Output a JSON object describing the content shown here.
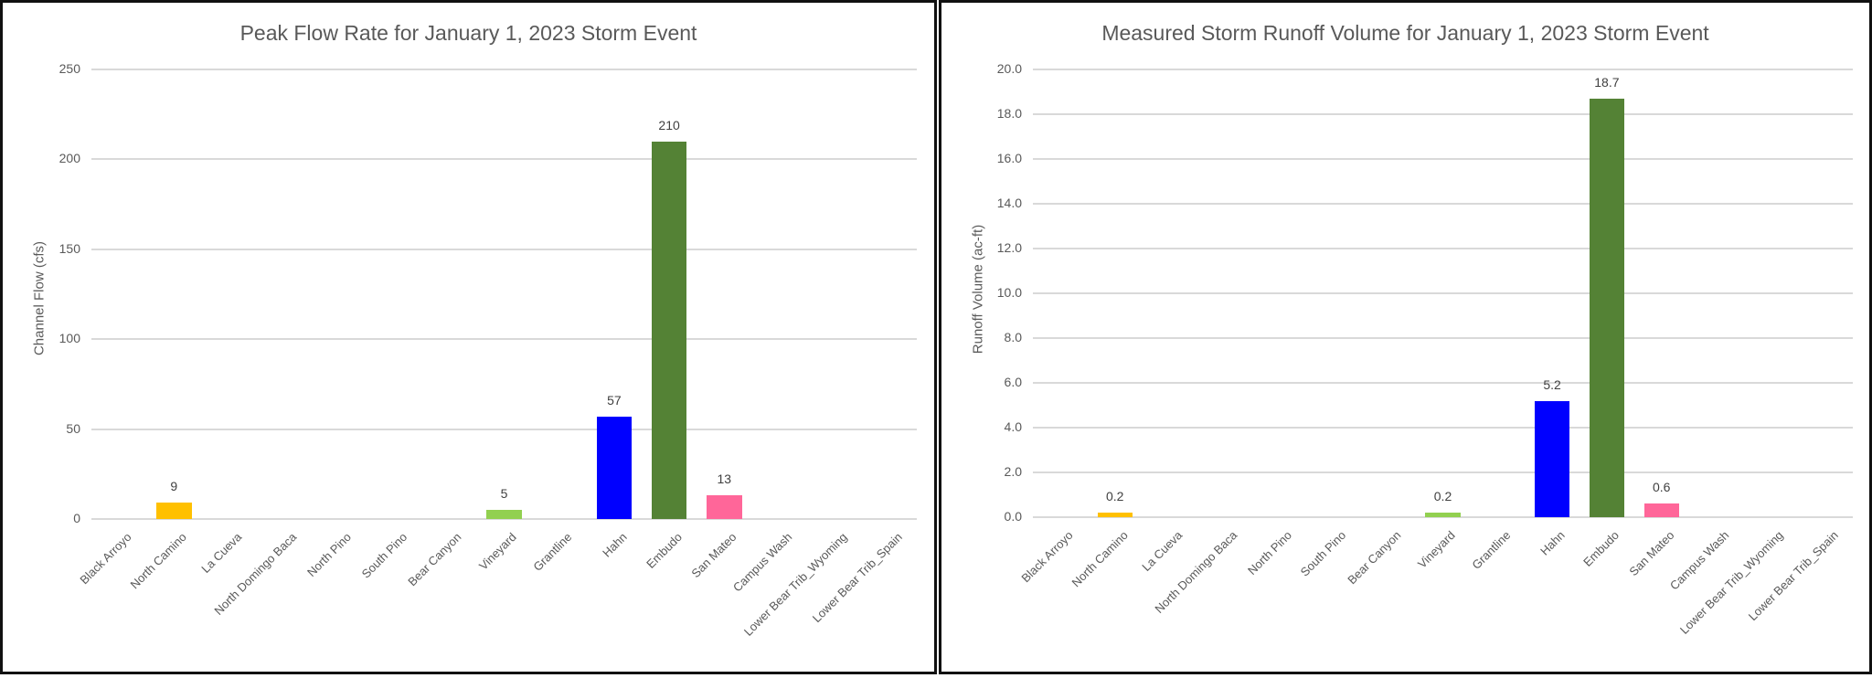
{
  "charts": [
    {
      "title": "Peak Flow Rate for January 1, 2023 Storm Event",
      "ylabel": "Channel Flow (cfs)",
      "yticks": [
        "250",
        "200",
        "150",
        "100",
        "50",
        "0"
      ]
    },
    {
      "title": "Measured Storm Runoff Volume for January 1, 2023 Storm Event",
      "ylabel": "Runoff Volume (ac-ft)",
      "yticks": [
        "20.0",
        "18.0",
        "16.0",
        "14.0",
        "12.0",
        "10.0",
        "8.0",
        "6.0",
        "4.0",
        "2.0",
        "0.0"
      ]
    }
  ],
  "chart_data": [
    {
      "type": "bar",
      "title": "Peak Flow Rate for January 1, 2023 Storm Event",
      "xlabel": "",
      "ylabel": "Channel Flow (cfs)",
      "ylim": [
        0,
        250
      ],
      "yticks": [
        0,
        50,
        100,
        150,
        200,
        250
      ],
      "grid": true,
      "legend": "none",
      "categories": [
        "Black Arroyo",
        "North Camino",
        "La Cueva",
        "North Domingo Baca",
        "North Pino",
        "South Pino",
        "Bear Canyon",
        "Vineyard",
        "Grantline",
        "Hahn",
        "Embudo",
        "San Mateo",
        "Campus Wash",
        "Lower Bear Trib_Wyoming",
        "Lower Bear Trib_Spain"
      ],
      "values": [
        null,
        9,
        null,
        null,
        null,
        null,
        null,
        5,
        null,
        57,
        210,
        13,
        null,
        null,
        null
      ],
      "data_labels": [
        "",
        "9",
        "",
        "",
        "",
        "",
        "",
        "5",
        "",
        "57",
        "210",
        "13",
        "",
        "",
        ""
      ],
      "colors": [
        "#ffc000",
        "#ffc000",
        "#ffc000",
        "#ffc000",
        "#ffc000",
        "#ffc000",
        "#ffc000",
        "#92d050",
        "#92d050",
        "#0000ff",
        "#548235",
        "#ff6699",
        "#ff6699",
        "#ff6699",
        "#ff6699"
      ]
    },
    {
      "type": "bar",
      "title": "Measured Storm Runoff Volume for January 1, 2023 Storm Event",
      "xlabel": "",
      "ylabel": "Runoff Volume (ac-ft)",
      "ylim": [
        0,
        20
      ],
      "yticks": [
        0,
        2,
        4,
        6,
        8,
        10,
        12,
        14,
        16,
        18,
        20
      ],
      "grid": true,
      "legend": "none",
      "categories": [
        "Black Arroyo",
        "North Camino",
        "La Cueva",
        "North Domingo Baca",
        "North Pino",
        "South Pino",
        "Bear Canyon",
        "Vineyard",
        "Grantline",
        "Hahn",
        "Embudo",
        "San Mateo",
        "Campus Wash",
        "Lower Bear Trib_Wyoming",
        "Lower Bear Trib_Spain"
      ],
      "values": [
        null,
        0.2,
        null,
        null,
        null,
        null,
        null,
        0.2,
        null,
        5.2,
        18.7,
        0.6,
        null,
        null,
        null
      ],
      "data_labels": [
        "",
        "0.2",
        "",
        "",
        "",
        "",
        "",
        "0.2",
        "",
        "5.2",
        "18.7",
        "0.6",
        "",
        "",
        ""
      ],
      "colors": [
        "#ffc000",
        "#ffc000",
        "#ffc000",
        "#ffc000",
        "#ffc000",
        "#ffc000",
        "#ffc000",
        "#92d050",
        "#92d050",
        "#0000ff",
        "#548235",
        "#ff6699",
        "#ff6699",
        "#ff6699",
        "#ff6699"
      ]
    }
  ]
}
